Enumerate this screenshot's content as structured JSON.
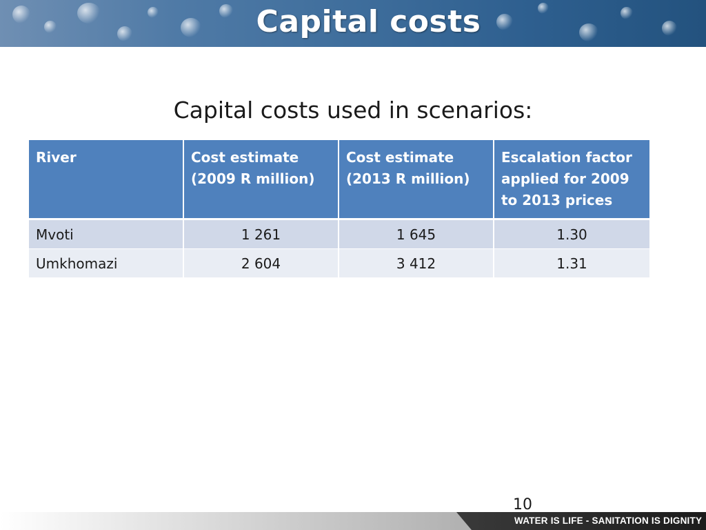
{
  "slide": {
    "title": "Capital costs",
    "subtitle": "Capital costs used in scenarios:",
    "page_number": "10"
  },
  "table": {
    "headers": [
      "River",
      "Cost estimate (2009 R million)",
      "Cost estimate (2013 R million)",
      "Escalation factor applied for 2009 to 2013 prices"
    ],
    "rows": [
      [
        "Mvoti",
        "1 261",
        "1 645",
        "1.30"
      ],
      [
        "Umkhomazi",
        "2 604",
        "3 412",
        "1.31"
      ]
    ]
  },
  "footer": {
    "slogan": "WATER IS LIFE - SANITATION IS DIGNITY"
  },
  "colors": {
    "header_fill": "#4f81bd",
    "row_odd": "#d0d8e8",
    "row_even": "#e9edf4",
    "title_band": "#3f6e9c"
  }
}
